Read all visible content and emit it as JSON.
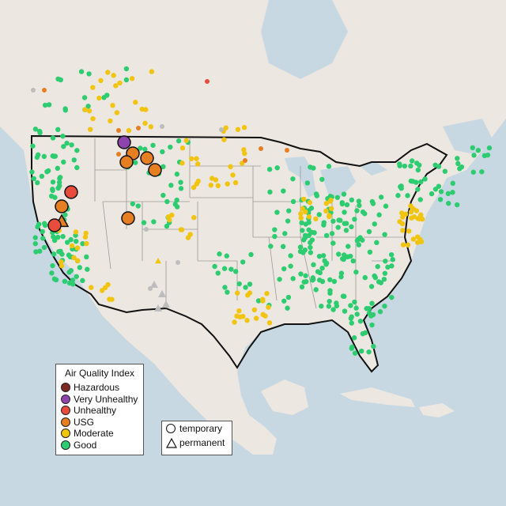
{
  "legend": {
    "title": "Air Quality Index",
    "categories": [
      {
        "label": "Hazardous",
        "color": "#7e2a23"
      },
      {
        "label": "Very Unhealthy",
        "color": "#8e44ad"
      },
      {
        "label": "Unhealthy",
        "color": "#e74c3c"
      },
      {
        "label": "USG",
        "color": "#e67e22"
      },
      {
        "label": "Moderate",
        "color": "#f1c40f"
      },
      {
        "label": "Good",
        "color": "#2ecc71"
      }
    ],
    "monitor_types": [
      {
        "label": "temporary",
        "icon": "circle-icon"
      },
      {
        "label": "permanent",
        "icon": "triangle-icon"
      }
    ]
  },
  "colors": {
    "ocean": "#c8d8e2",
    "land": "#ece7e1",
    "no_data": "#bdbdbd"
  }
}
